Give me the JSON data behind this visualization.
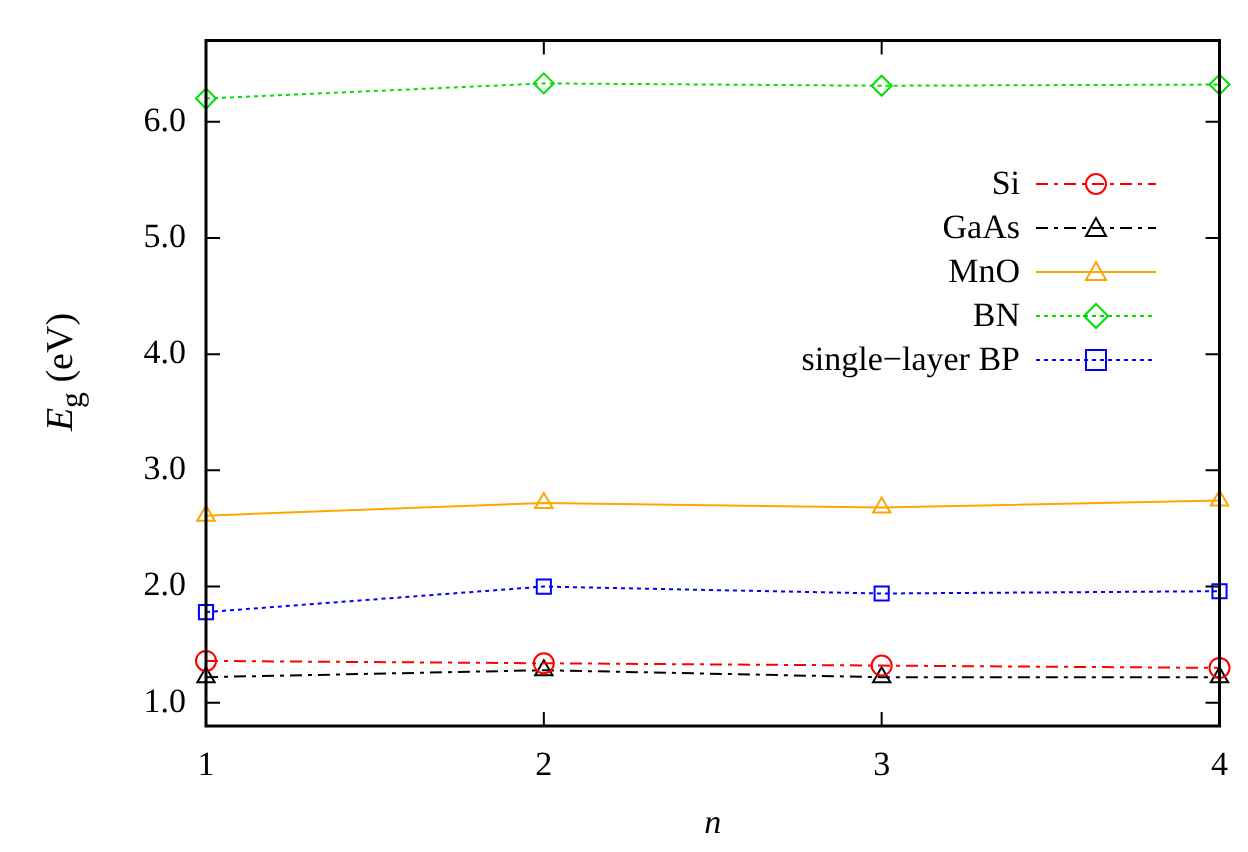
{
  "chart_data": {
    "type": "line",
    "xlabel": "n",
    "ylabel": "E$_{g}$ (eV)",
    "x": [
      1,
      2,
      3,
      4
    ],
    "xlim": [
      1,
      4
    ],
    "xticks": [
      1,
      2,
      3,
      4
    ],
    "ylim": [
      0.8,
      6.7
    ],
    "yticks": [
      {
        "value": 1,
        "label": "1.0"
      },
      {
        "value": 2,
        "label": "2.0"
      },
      {
        "value": 3,
        "label": "3.0"
      },
      {
        "value": 4,
        "label": "4.0"
      },
      {
        "value": 5,
        "label": "5.0"
      },
      {
        "value": 6,
        "label": "6.0"
      }
    ],
    "grid": false,
    "legend": "top right",
    "series": [
      {
        "name": "Si",
        "color": "#ff0000",
        "values": [
          1.36,
          1.34,
          1.32,
          1.3
        ],
        "marker": "circle",
        "line_style": "dashed"
      },
      {
        "name": "GaAs",
        "color": "#000000",
        "values": [
          1.22,
          1.28,
          1.22,
          1.22
        ],
        "marker": "triangle",
        "line_style": "dashed"
      },
      {
        "name": "MnO",
        "color": "#ffa500",
        "values": [
          2.61,
          2.72,
          2.68,
          2.74
        ],
        "marker": "triangle",
        "line_style": "solid"
      },
      {
        "name": "BN",
        "color": "#00e000",
        "values": [
          6.2,
          6.33,
          6.31,
          6.32
        ],
        "marker": "diamond",
        "line_style": "dotted"
      },
      {
        "name": "single−layer BP",
        "color": "#0000ff",
        "values": [
          1.78,
          2.0,
          1.94,
          1.96
        ],
        "marker": "square",
        "line_style": "dotted"
      }
    ]
  }
}
